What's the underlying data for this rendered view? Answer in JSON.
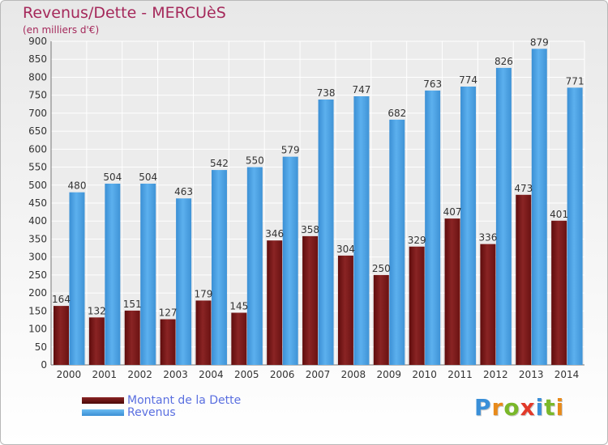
{
  "title": "Revenus/Dette - MERCUèS",
  "subtitle": "(en milliers d'€)",
  "legend": {
    "debt_label": "Montant de la Dette",
    "revenue_label": "Revenus"
  },
  "logo": [
    "P",
    "r",
    "o",
    "x",
    "i",
    "t",
    "i"
  ],
  "colors": {
    "debt": "#7a1a1a",
    "revenue": "#4ea4e4",
    "title": "#a5295b",
    "legend_text": "#5a6fe0"
  },
  "chart_data": {
    "type": "bar",
    "title": "Revenus/Dette - MERCUèS",
    "subtitle": "(en milliers d'€)",
    "categories": [
      "2000",
      "2001",
      "2002",
      "2003",
      "2004",
      "2005",
      "2006",
      "2007",
      "2008",
      "2009",
      "2010",
      "2011",
      "2012",
      "2013",
      "2014"
    ],
    "series": [
      {
        "name": "Montant de la Dette",
        "values": [
          164,
          132,
          151,
          127,
          179,
          145,
          346,
          358,
          304,
          250,
          329,
          407,
          336,
          473,
          401
        ]
      },
      {
        "name": "Revenus",
        "values": [
          480,
          504,
          504,
          463,
          542,
          550,
          579,
          738,
          747,
          682,
          763,
          774,
          826,
          879,
          771
        ]
      }
    ],
    "yticks": [
      0,
      50,
      100,
      150,
      200,
      250,
      300,
      350,
      400,
      450,
      500,
      550,
      600,
      650,
      700,
      750,
      800,
      850,
      900
    ],
    "ylim": [
      0,
      900
    ],
    "grid": true,
    "legend_position": "bottom-left"
  }
}
